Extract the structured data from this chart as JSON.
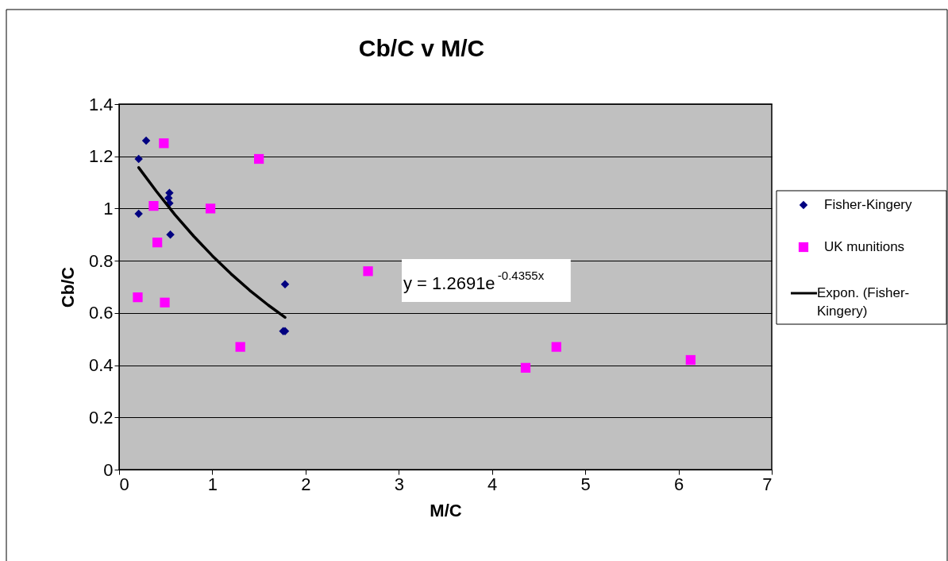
{
  "chart_data": {
    "type": "scatter",
    "title": "Cb/C v M/C",
    "xlabel": "M/C",
    "ylabel": "Cb/C",
    "xlim": [
      0,
      7
    ],
    "xticks": [
      0,
      1,
      2,
      3,
      4,
      5,
      6,
      7
    ],
    "ylim": [
      0,
      1.4
    ],
    "yticks": [
      0,
      0.2,
      0.4,
      0.6,
      0.8,
      1,
      1.2,
      1.4
    ],
    "grid": "y",
    "legend": "right",
    "annotations": [
      "y = 1.2691e$^{-0.4355x}$"
    ],
    "series": [
      {
        "name": "Fisher-Kingery",
        "color": "#000080",
        "marker": "diamond",
        "x": [
          0.29,
          0.21,
          0.21,
          0.54,
          0.53,
          0.54,
          0.55,
          1.78,
          1.76,
          1.78
        ],
        "values": [
          1.26,
          1.19,
          0.98,
          1.06,
          1.04,
          1.02,
          0.9,
          0.71,
          0.53,
          0.53
        ]
      },
      {
        "name": "UK munitions",
        "color": "#ff00ff",
        "marker": "square",
        "x": [
          0.48,
          1.5,
          0.37,
          0.98,
          0.41,
          0.2,
          0.49,
          1.3,
          2.67,
          4.36,
          4.69,
          6.13
        ],
        "values": [
          1.25,
          1.19,
          1.01,
          1.0,
          0.87,
          0.66,
          0.64,
          0.47,
          0.76,
          0.39,
          0.47,
          0.42
        ]
      },
      {
        "name": "Expon. (Fisher-Kingery)",
        "type": "line",
        "color": "#000000",
        "marker": "none",
        "line_style": "solid",
        "x": [
          0.21,
          0.4,
          0.6,
          0.8,
          1.0,
          1.2,
          1.4,
          1.6,
          1.78
        ],
        "values": [
          1.157,
          1.066,
          0.976,
          0.894,
          0.819,
          0.75,
          0.687,
          0.63,
          0.583
        ]
      }
    ]
  }
}
